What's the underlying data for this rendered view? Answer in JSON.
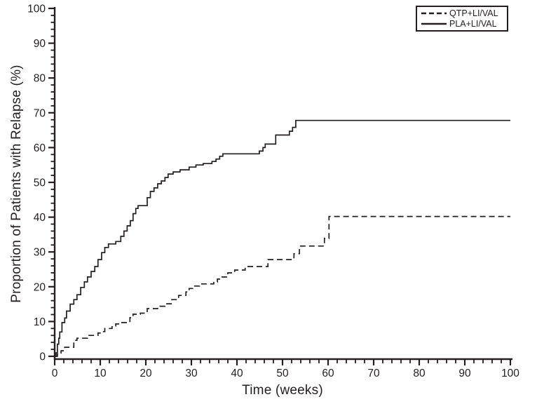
{
  "figure": {
    "background": "#ffffff",
    "ink_color": "#231f20"
  },
  "chart_data": {
    "type": "line",
    "subtype": "kaplan-meier-step",
    "title": "",
    "xlabel": "Time (weeks)",
    "ylabel": "Proportion of Patients with Relapse (%)",
    "xlim": [
      0,
      100
    ],
    "ylim": [
      0,
      100
    ],
    "x_major_ticks": [
      0,
      10,
      20,
      30,
      40,
      50,
      60,
      70,
      80,
      90,
      100
    ],
    "y_major_ticks": [
      0,
      10,
      20,
      30,
      40,
      50,
      60,
      70,
      80,
      90,
      100
    ],
    "x_minor_step": 2,
    "y_minor_step": 2,
    "grid": false,
    "legend_position": "top-right",
    "series": [
      {
        "name": "QTP+LI/VAL",
        "style": "dashed",
        "color": "#231f20",
        "points": [
          [
            0,
            0
          ],
          [
            0.6,
            0.6
          ],
          [
            1.4,
            1.6
          ],
          [
            2.2,
            2.6
          ],
          [
            4.2,
            4.6
          ],
          [
            4.9,
            5.2
          ],
          [
            7.2,
            6.0
          ],
          [
            9.5,
            6.7
          ],
          [
            10.3,
            7.1
          ],
          [
            11,
            8.0
          ],
          [
            12.6,
            8.7
          ],
          [
            13.4,
            9.3
          ],
          [
            14.2,
            9.7
          ],
          [
            16.5,
            11.1
          ],
          [
            17.2,
            12.1
          ],
          [
            18.8,
            12.4
          ],
          [
            20.3,
            13.7
          ],
          [
            22.6,
            14.4
          ],
          [
            24.2,
            15.1
          ],
          [
            25.7,
            16.3
          ],
          [
            27.2,
            17.5
          ],
          [
            28.8,
            18.5
          ],
          [
            29.5,
            19.5
          ],
          [
            30.3,
            20.2
          ],
          [
            31.8,
            20.8
          ],
          [
            34.9,
            21.4
          ],
          [
            35.7,
            22.2
          ],
          [
            36.5,
            22.8
          ],
          [
            38,
            24.0
          ],
          [
            39.5,
            24.8
          ],
          [
            41.8,
            25.8
          ],
          [
            46.8,
            27.8
          ],
          [
            52.5,
            29.5
          ],
          [
            53.7,
            31.7
          ],
          [
            59.2,
            33.9
          ],
          [
            60.2,
            40.2
          ],
          [
            100,
            40.2
          ]
        ]
      },
      {
        "name": "PLA+LI/VAL",
        "style": "solid",
        "color": "#231f20",
        "points": [
          [
            0,
            0
          ],
          [
            0.3,
            1.0
          ],
          [
            0.6,
            3.5
          ],
          [
            0.9,
            5.2
          ],
          [
            1.1,
            7.0
          ],
          [
            1.6,
            9.7
          ],
          [
            2.2,
            11.0
          ],
          [
            2.6,
            13.0
          ],
          [
            3.4,
            15.0
          ],
          [
            4.2,
            16.3
          ],
          [
            4.9,
            17.7
          ],
          [
            5.7,
            19.8
          ],
          [
            6.5,
            21.4
          ],
          [
            7.2,
            22.8
          ],
          [
            8,
            24.4
          ],
          [
            8.8,
            25.8
          ],
          [
            9.5,
            27.8
          ],
          [
            10.3,
            29.8
          ],
          [
            11,
            31.3
          ],
          [
            11.8,
            32.3
          ],
          [
            13.4,
            33.0
          ],
          [
            14.5,
            34.5
          ],
          [
            15.2,
            36.0
          ],
          [
            15.9,
            37.5
          ],
          [
            16.6,
            39.0
          ],
          [
            17.2,
            41.0
          ],
          [
            17.8,
            42.5
          ],
          [
            18.3,
            43.3
          ],
          [
            20.3,
            45.6
          ],
          [
            21,
            47.4
          ],
          [
            21.8,
            48.4
          ],
          [
            22.6,
            49.6
          ],
          [
            23.4,
            50.4
          ],
          [
            24.2,
            51.4
          ],
          [
            24.9,
            52.4
          ],
          [
            26,
            53.0
          ],
          [
            27.5,
            53.6
          ],
          [
            29.5,
            54.4
          ],
          [
            31,
            55.0
          ],
          [
            32.6,
            55.4
          ],
          [
            34.5,
            56.0
          ],
          [
            35.4,
            56.7
          ],
          [
            36.2,
            57.5
          ],
          [
            36.9,
            58.2
          ],
          [
            44.9,
            59.0
          ],
          [
            45.7,
            60.0
          ],
          [
            46.2,
            61.0
          ],
          [
            48.5,
            63.6
          ],
          [
            51.5,
            64.7
          ],
          [
            52.2,
            65.8
          ],
          [
            52.9,
            67.8
          ],
          [
            100,
            67.8
          ]
        ]
      }
    ]
  }
}
